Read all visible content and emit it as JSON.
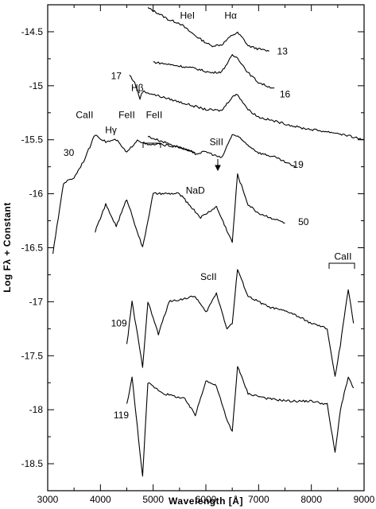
{
  "chart_data": {
    "type": "line",
    "xlabel": "Wavelength [Å]",
    "ylabel": "Log Fλ + Constant",
    "xlim": [
      3000,
      9000
    ],
    "ylim": [
      -18.75,
      -14.25
    ],
    "x_ticks": [
      3000,
      4000,
      5000,
      6000,
      7000,
      8000,
      9000
    ],
    "y_ticks": [
      -14.5,
      -15,
      -15.5,
      -16,
      -16.5,
      -17,
      -17.5,
      -18,
      -18.5
    ],
    "grid": false,
    "series": [
      {
        "name": "13",
        "label_pos": [
          7350,
          -14.68
        ],
        "points": [
          [
            4900,
            -14.28
          ],
          [
            5100,
            -14.33
          ],
          [
            5300,
            -14.39
          ],
          [
            5500,
            -14.42
          ],
          [
            5700,
            -14.5
          ],
          [
            5900,
            -14.57
          ],
          [
            6100,
            -14.63
          ],
          [
            6300,
            -14.62
          ],
          [
            6500,
            -14.53
          ],
          [
            6600,
            -14.51
          ],
          [
            6700,
            -14.56
          ],
          [
            6800,
            -14.63
          ],
          [
            7000,
            -14.66
          ],
          [
            7200,
            -14.68
          ]
        ]
      },
      {
        "name": "16",
        "label_pos": [
          7400,
          -15.08
        ],
        "points": [
          [
            5000,
            -14.78
          ],
          [
            5400,
            -14.81
          ],
          [
            5800,
            -14.84
          ],
          [
            6100,
            -14.88
          ],
          [
            6300,
            -14.87
          ],
          [
            6500,
            -14.72
          ],
          [
            6600,
            -14.74
          ],
          [
            6800,
            -14.88
          ],
          [
            7000,
            -14.97
          ],
          [
            7200,
            -15.01
          ],
          [
            7300,
            -15.02
          ]
        ]
      },
      {
        "name": "17",
        "label_pos": [
          4200,
          -14.91
        ],
        "points": [
          [
            4550,
            -14.9
          ],
          [
            4650,
            -14.97
          ],
          [
            4750,
            -15.12
          ],
          [
            4800,
            -15.05
          ],
          [
            5000,
            -15.08
          ],
          [
            5500,
            -15.15
          ],
          [
            6000,
            -15.22
          ],
          [
            6300,
            -15.23
          ],
          [
            6500,
            -15.1
          ],
          [
            6600,
            -15.08
          ],
          [
            6800,
            -15.22
          ],
          [
            7000,
            -15.29
          ],
          [
            7400,
            -15.34
          ],
          [
            7800,
            -15.39
          ],
          [
            8500,
            -15.44
          ],
          [
            9000,
            -15.5
          ]
        ]
      },
      {
        "name": "19",
        "label_pos": [
          7650,
          -15.73
        ],
        "points": [
          [
            4900,
            -15.47
          ],
          [
            5200,
            -15.52
          ],
          [
            5500,
            -15.57
          ],
          [
            5800,
            -15.63
          ],
          [
            6000,
            -15.61
          ],
          [
            6300,
            -15.67
          ],
          [
            6500,
            -15.45
          ],
          [
            6600,
            -15.47
          ],
          [
            6800,
            -15.55
          ],
          [
            7000,
            -15.62
          ],
          [
            7300,
            -15.66
          ],
          [
            7600,
            -15.73
          ],
          [
            7700,
            -15.76
          ]
        ]
      },
      {
        "name": "30",
        "label_pos": [
          3300,
          -15.62
        ],
        "points": [
          [
            3100,
            -16.55
          ],
          [
            3300,
            -15.9
          ],
          [
            3500,
            -15.85
          ],
          [
            3700,
            -15.68
          ],
          [
            3900,
            -15.45
          ],
          [
            4100,
            -15.52
          ],
          [
            4300,
            -15.5
          ],
          [
            4500,
            -15.62
          ],
          [
            4700,
            -15.5
          ],
          [
            4900,
            -15.55
          ],
          [
            5100,
            -15.54
          ],
          [
            5500,
            -15.57
          ],
          [
            5800,
            -15.62
          ]
        ]
      },
      {
        "name": "50",
        "label_pos": [
          7750,
          -16.26
        ],
        "points": [
          [
            3900,
            -16.35
          ],
          [
            4100,
            -16.1
          ],
          [
            4300,
            -16.3
          ],
          [
            4500,
            -16.05
          ],
          [
            4800,
            -16.5
          ],
          [
            5000,
            -16.0
          ],
          [
            5500,
            -16.0
          ],
          [
            5900,
            -16.22
          ],
          [
            6200,
            -16.12
          ],
          [
            6500,
            -16.45
          ],
          [
            6600,
            -15.82
          ],
          [
            6800,
            -16.1
          ],
          [
            7000,
            -16.18
          ],
          [
            7500,
            -16.27
          ]
        ]
      },
      {
        "name": "109",
        "label_pos": [
          4200,
          -17.2
        ],
        "points": [
          [
            4500,
            -17.4
          ],
          [
            4600,
            -17.0
          ],
          [
            4800,
            -17.6
          ],
          [
            4900,
            -17.0
          ],
          [
            5100,
            -17.3
          ],
          [
            5300,
            -17.0
          ],
          [
            5800,
            -16.95
          ],
          [
            6000,
            -17.1
          ],
          [
            6200,
            -16.92
          ],
          [
            6400,
            -17.25
          ],
          [
            6500,
            -17.2
          ],
          [
            6600,
            -16.7
          ],
          [
            6800,
            -16.95
          ],
          [
            7200,
            -17.05
          ],
          [
            7600,
            -17.1
          ],
          [
            8000,
            -17.2
          ],
          [
            8300,
            -17.25
          ],
          [
            8450,
            -17.7
          ],
          [
            8550,
            -17.4
          ],
          [
            8700,
            -16.88
          ],
          [
            8800,
            -17.2
          ]
        ]
      },
      {
        "name": "119",
        "label_pos": [
          4250,
          -18.05
        ],
        "points": [
          [
            4500,
            -17.95
          ],
          [
            4600,
            -17.7
          ],
          [
            4800,
            -18.62
          ],
          [
            4900,
            -17.75
          ],
          [
            5200,
            -17.85
          ],
          [
            5600,
            -17.9
          ],
          [
            5800,
            -18.05
          ],
          [
            6000,
            -17.73
          ],
          [
            6200,
            -17.78
          ],
          [
            6400,
            -18.1
          ],
          [
            6500,
            -18.2
          ],
          [
            6600,
            -17.6
          ],
          [
            6800,
            -17.85
          ],
          [
            7200,
            -17.9
          ],
          [
            7600,
            -17.92
          ],
          [
            8000,
            -17.92
          ],
          [
            8300,
            -17.95
          ],
          [
            8450,
            -18.4
          ],
          [
            8550,
            -18.0
          ],
          [
            8700,
            -17.7
          ],
          [
            8800,
            -17.8
          ]
        ]
      }
    ],
    "annotations": [
      {
        "text": "HeI",
        "x": 5650,
        "y": -14.35
      },
      {
        "text": "Hα",
        "x": 6470,
        "y": -14.35
      },
      {
        "text": "Hβ",
        "x": 4700,
        "y": -15.02
      },
      {
        "text": "CaII",
        "x": 3700,
        "y": -15.27
      },
      {
        "text": "Hγ",
        "x": 4200,
        "y": -15.41
      },
      {
        "text": "FeII",
        "x": 4500,
        "y": -15.27
      },
      {
        "text": "FeII",
        "x": 5020,
        "y": -15.27
      },
      {
        "text": "SiII",
        "x": 6200,
        "y": -15.52
      },
      {
        "text": "NaD",
        "x": 5800,
        "y": -15.97
      },
      {
        "text": "ScII",
        "x": 6050,
        "y": -16.77
      },
      {
        "text": "CaII",
        "x": 8600,
        "y": -16.58
      }
    ]
  }
}
